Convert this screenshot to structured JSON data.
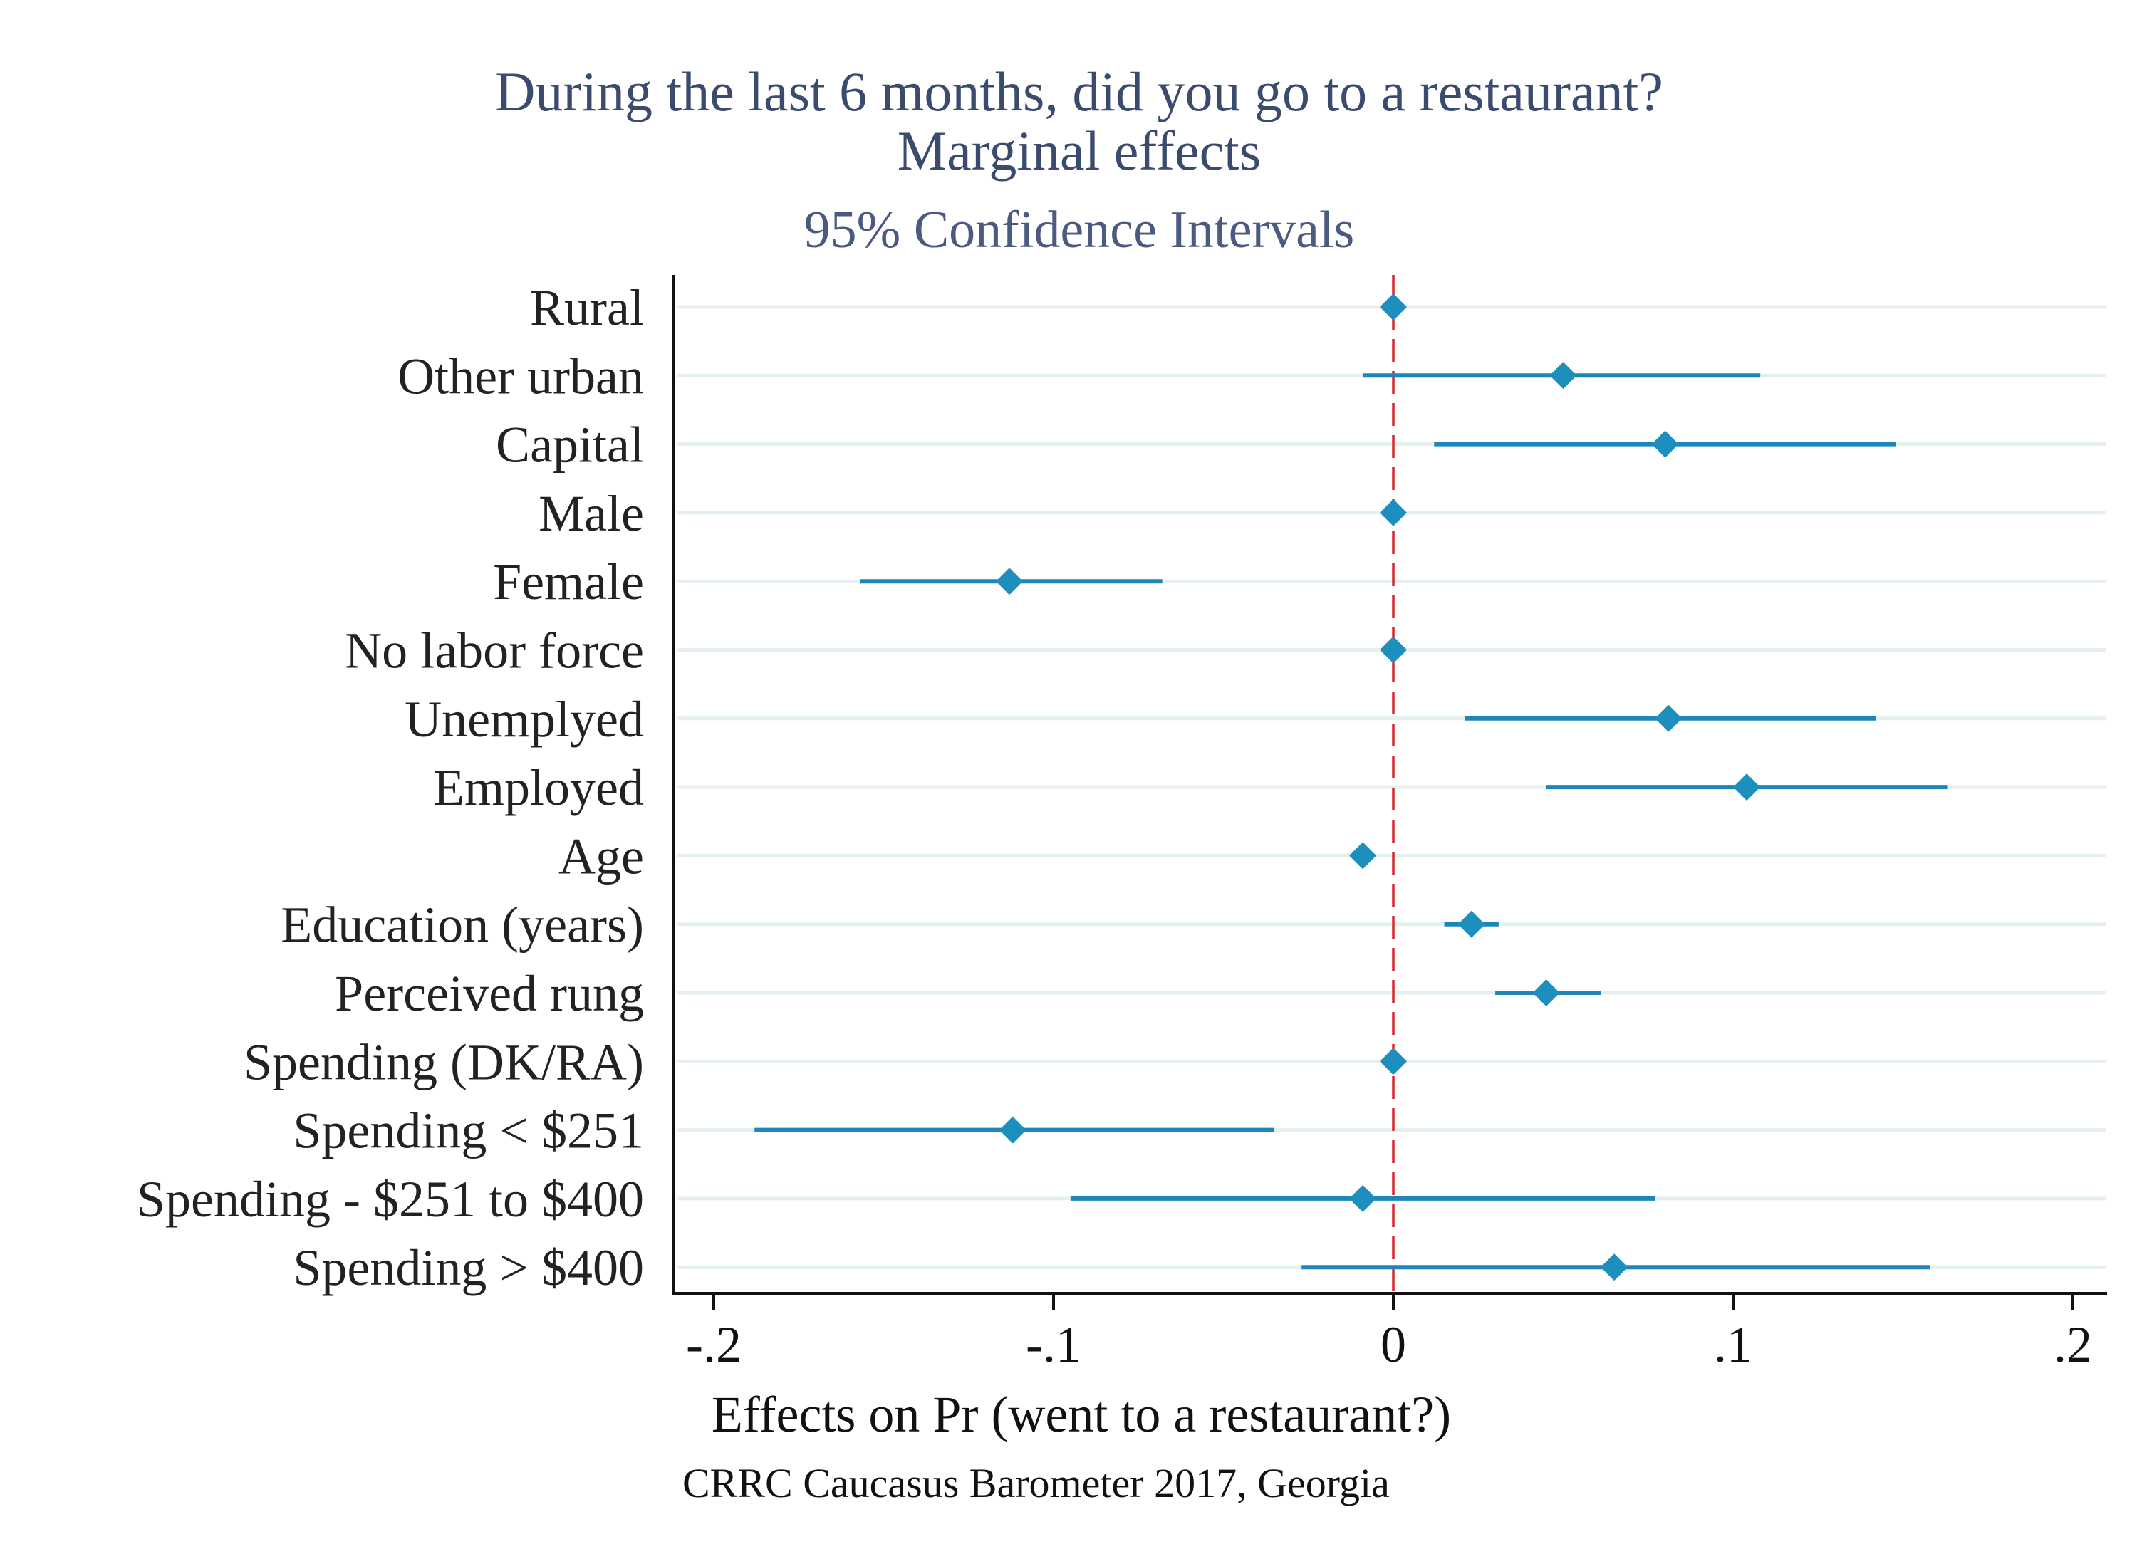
{
  "chart_data": {
    "type": "scatter",
    "title": "During the last 6 months, did you go to a restaurant?",
    "title_line2": "Marginal effects",
    "subtitle": "95% Confidence Intervals",
    "xlabel": "Effects on Pr (went to a restaurant?)",
    "note": "CRRC Caucasus Barometer 2017, Georgia",
    "xlim": [
      -0.21,
      0.21
    ],
    "x_ticks": [
      -0.2,
      -0.1,
      0,
      0.1,
      0.2
    ],
    "x_tick_labels": [
      "-.2",
      "-.1",
      "0",
      ".1",
      ".2"
    ],
    "reference_line": 0,
    "grid": true,
    "marker": "diamond",
    "colors": {
      "marker": "#1d8fbf",
      "ci_line": "#1d86b8",
      "reference_line": "#d62728",
      "grid": "#e6efef",
      "title": "#3a4b6e"
    },
    "categories": [
      "Rural",
      "Other urban",
      "Capital",
      "Male",
      "Female",
      "No labor force",
      "Unemplyed",
      "Employed",
      "Age",
      "Education (years)",
      "Perceived rung",
      "Spending (DK/RA)",
      "Spending < $251",
      "Spending - $251 to $400",
      "Spending > $400"
    ],
    "estimates": [
      0,
      0.05,
      0.08,
      0,
      -0.113,
      0,
      0.081,
      0.104,
      -0.009,
      0.023,
      0.045,
      0,
      -0.112,
      -0.009,
      0.065
    ],
    "ci_low": [
      null,
      -0.009,
      0.012,
      null,
      -0.157,
      null,
      0.021,
      0.045,
      null,
      0.015,
      0.03,
      null,
      -0.188,
      -0.095,
      -0.027
    ],
    "ci_high": [
      null,
      0.108,
      0.148,
      null,
      -0.068,
      null,
      0.142,
      0.163,
      null,
      0.031,
      0.061,
      null,
      -0.035,
      0.077,
      0.158
    ]
  }
}
